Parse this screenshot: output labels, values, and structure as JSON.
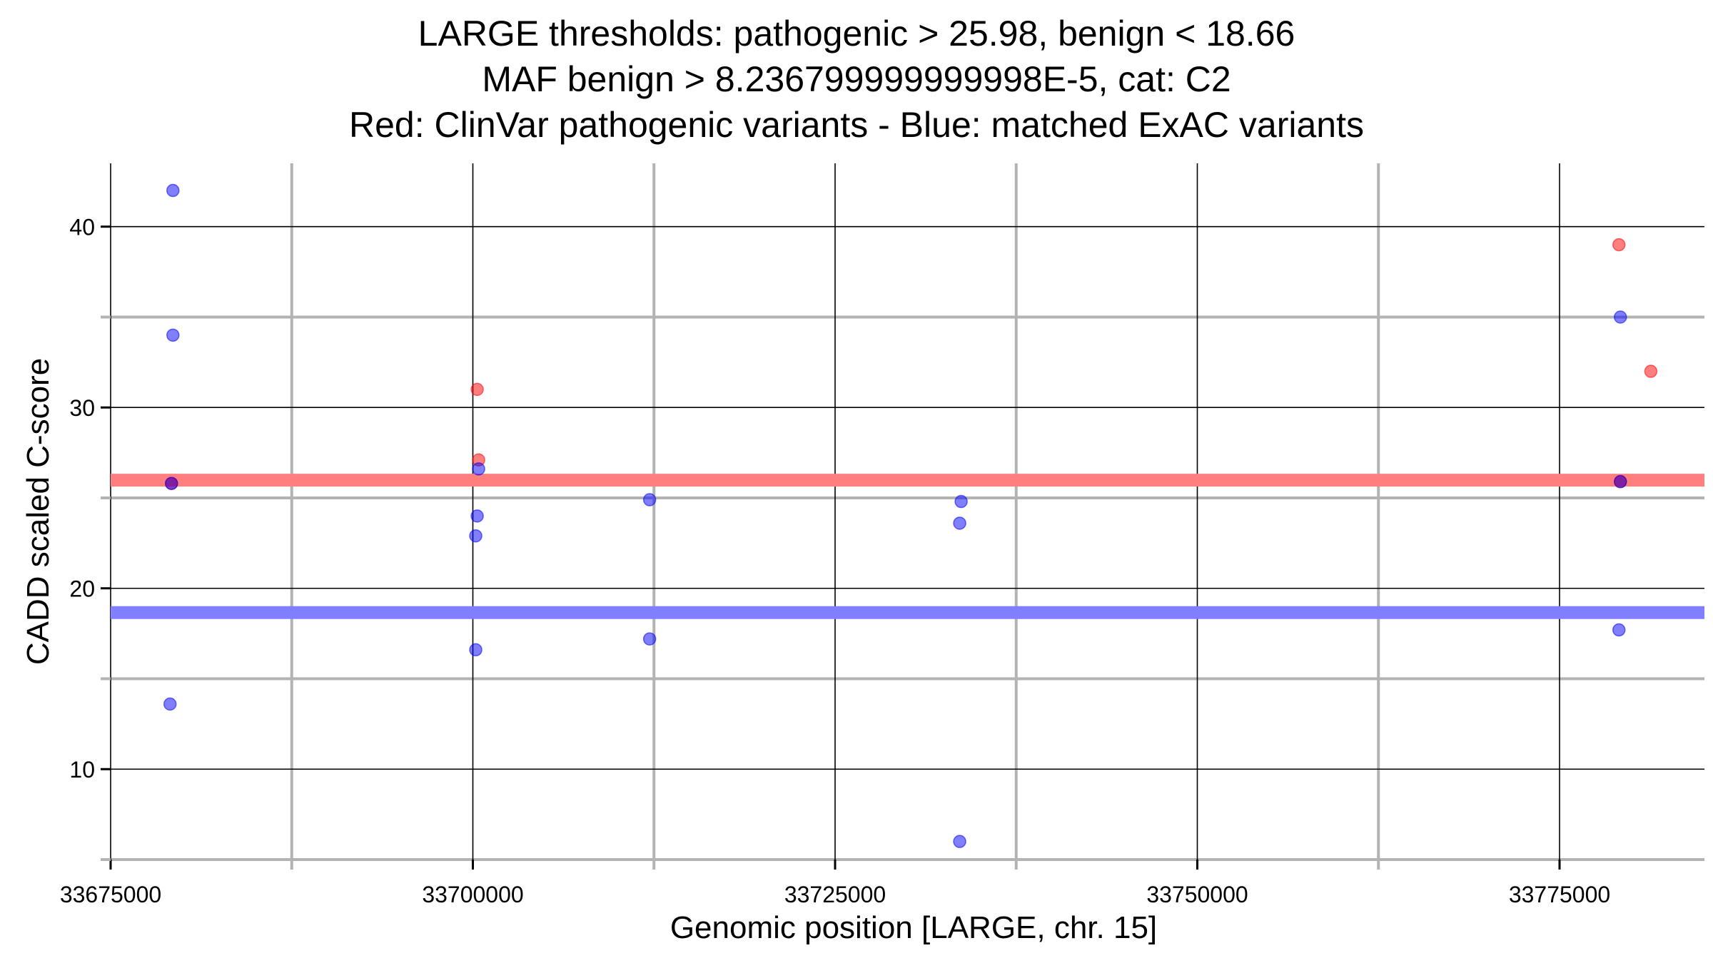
{
  "chart_data": {
    "type": "scatter",
    "title": [
      "LARGE thresholds: pathogenic > 25.98, benign < 18.66",
      "MAF benign > 8.236799999999998E-5, cat: C2",
      "Red: ClinVar pathogenic variants - Blue: matched ExAC variants"
    ],
    "xlabel": "Genomic position [LARGE, chr. 15]",
    "ylabel": "CADD scaled C-score",
    "xlim": [
      33675000,
      33785000
    ],
    "ylim": [
      5,
      43.5
    ],
    "x_ticks": [
      33675000,
      33700000,
      33725000,
      33750000,
      33775000
    ],
    "x_tick_labels": [
      "33675000",
      "33700000",
      "33725000",
      "33750000",
      "33775000"
    ],
    "x_minor_ticks": [
      33687500,
      33712500,
      33737500,
      33762500
    ],
    "y_ticks": [
      10,
      20,
      30,
      40
    ],
    "y_tick_labels": [
      "10",
      "20",
      "30",
      "40"
    ],
    "y_minor_ticks": [
      5,
      15,
      25,
      35
    ],
    "grid": true,
    "thresholds": [
      {
        "value": 25.98,
        "color": "#ff7f7f"
      },
      {
        "value": 18.66,
        "color": "#7f7fff"
      }
    ],
    "series": [
      {
        "color": "#ff0000",
        "points": [
          {
            "x": 33679200,
            "y": 25.8
          },
          {
            "x": 33700300,
            "y": 31.0
          },
          {
            "x": 33700400,
            "y": 27.1
          },
          {
            "x": 33779100,
            "y": 39.0
          },
          {
            "x": 33781300,
            "y": 32.0
          },
          {
            "x": 33779200,
            "y": 25.9
          }
        ]
      },
      {
        "color": "#0000ff",
        "points": [
          {
            "x": 33679300,
            "y": 42.0
          },
          {
            "x": 33679300,
            "y": 34.0
          },
          {
            "x": 33679200,
            "y": 25.8
          },
          {
            "x": 33679100,
            "y": 13.6
          },
          {
            "x": 33700400,
            "y": 26.6
          },
          {
            "x": 33700300,
            "y": 24.0
          },
          {
            "x": 33700200,
            "y": 22.9
          },
          {
            "x": 33700200,
            "y": 16.6
          },
          {
            "x": 33712200,
            "y": 24.9
          },
          {
            "x": 33712200,
            "y": 17.2
          },
          {
            "x": 33733700,
            "y": 24.8
          },
          {
            "x": 33733600,
            "y": 23.6
          },
          {
            "x": 33733600,
            "y": 6.0
          },
          {
            "x": 33779200,
            "y": 35.0
          },
          {
            "x": 33779200,
            "y": 25.9
          },
          {
            "x": 33779100,
            "y": 17.7
          }
        ]
      }
    ]
  }
}
